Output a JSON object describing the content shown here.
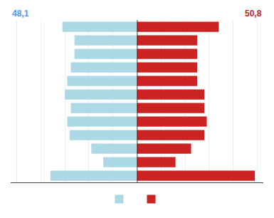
{
  "chart_data": {
    "type": "bar",
    "orientation": "horizontal",
    "categories": [
      null,
      null,
      null,
      null,
      null,
      null,
      null,
      null,
      null,
      null,
      null,
      null
    ],
    "series": [
      {
        "color": "#add8e6",
        "values": [
          7.2,
          2.8,
          3.8,
          5.6,
          5.8,
          5.5,
          6.0,
          5.8,
          5.5,
          5.2,
          5.2,
          6.2
        ]
      },
      {
        "color": "#cc2222",
        "values": [
          9.8,
          3.2,
          4.5,
          5.6,
          5.8,
          5.6,
          5.6,
          5.0,
          5.0,
          5.0,
          5.0,
          6.8
        ]
      }
    ],
    "xlim": [
      0,
      10.5
    ],
    "xticks": [
      0,
      2,
      4,
      6,
      8,
      10
    ],
    "grid": true,
    "tick_labels": false,
    "legend": "bottom",
    "annotations": [
      {
        "text": "48,1",
        "color": "#4499ff"
      },
      {
        "text": "50,8",
        "color": "#cc2222"
      }
    ]
  }
}
